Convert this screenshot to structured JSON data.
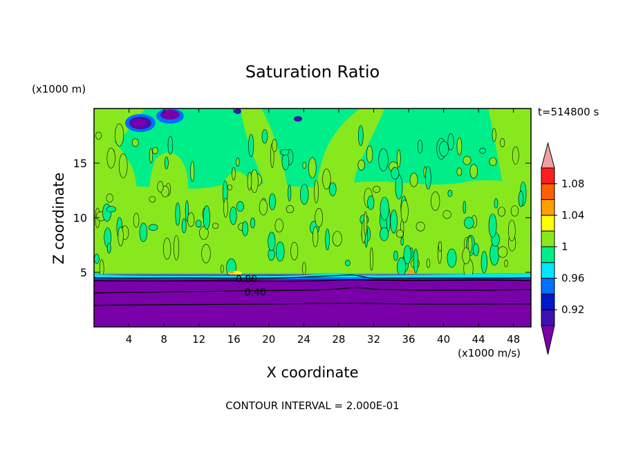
{
  "chart_data": {
    "type": "heatmap",
    "title": "Saturation Ratio",
    "xlabel": "X coordinate",
    "ylabel": "Z coordinate",
    "x_units": "(x1000 m/s)",
    "y_units": "(x1000 m)",
    "time_label": "t=514800 s",
    "footer": "CONTOUR INTERVAL = 2.000E-01",
    "xlim": [
      0,
      50
    ],
    "ylim": [
      0,
      20
    ],
    "x_ticks": [
      4,
      8,
      12,
      16,
      20,
      24,
      28,
      32,
      36,
      40,
      44,
      48
    ],
    "y_ticks": [
      5,
      10,
      15
    ],
    "contour_labels": [
      {
        "text": "0.80",
        "x": 16.5,
        "y": 4.4
      },
      {
        "text": "0.40",
        "x": 17.5,
        "y": 3.2
      }
    ],
    "colorbar": {
      "levels": [
        0.9,
        0.92,
        0.94,
        0.96,
        0.98,
        1.0,
        1.02,
        1.04,
        1.06,
        1.08,
        1.1
      ],
      "colors": [
        "#7a00aa",
        "#3f10b0",
        "#0018c8",
        "#0070ff",
        "#00e8ff",
        "#00ee8a",
        "#88e81e",
        "#ffff00",
        "#ffa000",
        "#ff6000",
        "#ff1e1e",
        "#f0a0a0"
      ],
      "tick_labels": [
        "0.92",
        "0.96",
        "1",
        "1.04",
        "1.08"
      ],
      "tick_values": [
        0.92,
        0.96,
        1.0,
        1.04,
        1.08
      ]
    },
    "regions": {
      "subsaturated_top_z": 4.8,
      "dominant_color_low": "#7a00aa",
      "dominant_color_upper": "#00ee8a",
      "patch_color": "#88e81e"
    }
  }
}
